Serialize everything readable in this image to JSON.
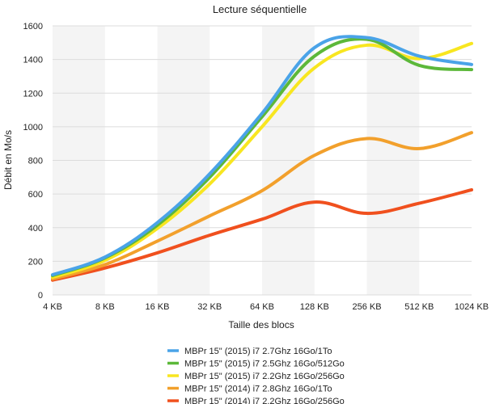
{
  "chart_data": {
    "type": "line",
    "title": "Lecture séquentielle",
    "xlabel": "Taille des blocs",
    "ylabel": "Débit en Mo/s",
    "categories": [
      "4 KB",
      "8 KB",
      "16 KB",
      "32 KB",
      "64 KB",
      "128 KB",
      "256 KB",
      "512 KB",
      "1024 KB"
    ],
    "ylim": [
      0,
      1600
    ],
    "yticks": [
      0,
      200,
      400,
      600,
      800,
      1000,
      1200,
      1400,
      1600
    ],
    "grid": true,
    "legend_position": "bottom",
    "series": [
      {
        "name": "MBPr 15\" (2015) i7 2.7Ghz 16Go/1To",
        "color": "#4aa3e8",
        "values": [
          120,
          225,
          430,
          720,
          1080,
          1470,
          1530,
          1420,
          1370
        ]
      },
      {
        "name": "MBPr 15\" (2015) i7 2.5Ghz 16Go/512Go",
        "color": "#5cb83a",
        "values": [
          115,
          220,
          415,
          700,
          1060,
          1420,
          1520,
          1365,
          1340
        ]
      },
      {
        "name": "MBPr 15\" (2015) i7 2.2Ghz 16Go/256Go",
        "color": "#f8e620",
        "values": [
          105,
          205,
          395,
          660,
          1000,
          1350,
          1485,
          1405,
          1495
        ]
      },
      {
        "name": "MBPr 15\" (2014) i7 2.8Ghz 16Go/1To",
        "color": "#f2a02c",
        "values": [
          95,
          180,
          320,
          470,
          620,
          830,
          930,
          870,
          965
        ]
      },
      {
        "name": "MBPr 15\" (2014) i7 2.2Ghz 16Go/256Go",
        "color": "#f0501e",
        "values": [
          88,
          160,
          250,
          355,
          450,
          552,
          485,
          545,
          625
        ]
      }
    ]
  }
}
